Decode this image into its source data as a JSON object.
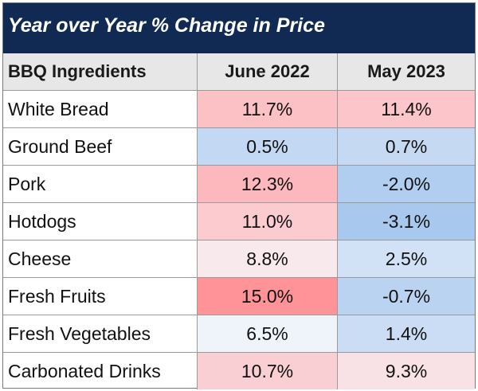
{
  "chart_data": {
    "type": "table",
    "title": "Year over Year % Change in Price",
    "columns": [
      "BBQ Ingredients",
      "June 2022",
      "May 2023"
    ],
    "rows": [
      {
        "item": "White Bread",
        "june_2022": "11.7%",
        "may_2023": "11.4%",
        "june_value": 11.7,
        "may_value": 11.4
      },
      {
        "item": "Ground Beef",
        "june_2022": "0.5%",
        "may_2023": "0.7%",
        "june_value": 0.5,
        "may_value": 0.7
      },
      {
        "item": "Pork",
        "june_2022": "12.3%",
        "may_2023": "-2.0%",
        "june_value": 12.3,
        "may_value": -2.0
      },
      {
        "item": "Hotdogs",
        "june_2022": "11.0%",
        "may_2023": "-3.1%",
        "june_value": 11.0,
        "may_value": -3.1
      },
      {
        "item": "Cheese",
        "june_2022": "8.8%",
        "may_2023": "2.5%",
        "june_value": 8.8,
        "may_value": 2.5
      },
      {
        "item": "Fresh Fruits",
        "june_2022": "15.0%",
        "may_2023": "-0.7%",
        "june_value": 15.0,
        "may_value": -0.7
      },
      {
        "item": "Fresh Vegetables",
        "june_2022": "6.5%",
        "may_2023": "1.4%",
        "june_value": 6.5,
        "may_value": 1.4
      },
      {
        "item": "Carbonated Drinks",
        "june_2022": "10.7%",
        "may_2023": "9.3%",
        "june_value": 10.7,
        "may_value": 9.3
      }
    ],
    "colors": {
      "title_background": "#112a53",
      "header_background": "#e7e7e7",
      "scale_low": "#a9c8ee",
      "scale_mid": "#f7f9fd",
      "scale_high": "#ff9397"
    }
  }
}
